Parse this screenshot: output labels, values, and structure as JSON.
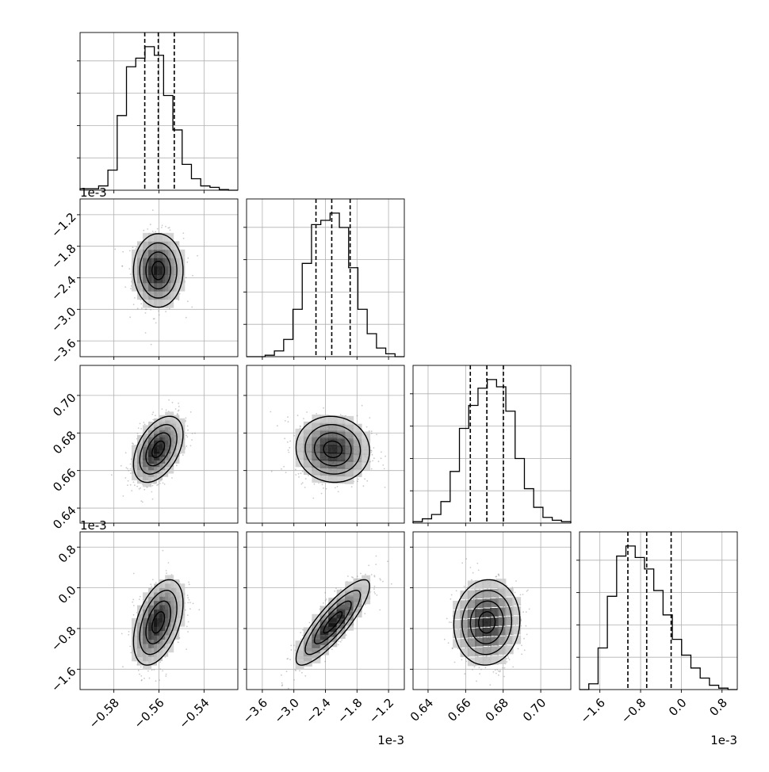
{
  "chart_data": {
    "type": "corner",
    "parameters": [
      {
        "index": 0,
        "range": [
          -0.595,
          -0.525
        ],
        "ticks": [
          -0.58,
          -0.56,
          -0.54
        ],
        "tick_labels": [
          "-0.58",
          "-0.56",
          "-0.54"
        ],
        "offset_label": "",
        "quantiles": [
          -0.5663,
          -0.5603,
          -0.5532
        ],
        "hist_bins": [
          0.01,
          0.01,
          0.03,
          0.14,
          0.52,
          0.86,
          0.92,
          1.0,
          0.94,
          0.66,
          0.42,
          0.18,
          0.08,
          0.03,
          0.02,
          0.005,
          0.0
        ],
        "mean": -0.5603,
        "std": 0.0055
      },
      {
        "index": 1,
        "range": [
          -3.9,
          -0.9
        ],
        "ticks": [
          -3.6,
          -3.0,
          -2.4,
          -1.8,
          -1.2
        ],
        "tick_labels": [
          "-3.6",
          "-3.0",
          "-2.4",
          "-1.8",
          "-1.2"
        ],
        "offset_label": "1e-3",
        "quantiles": [
          -2.58,
          -2.28,
          -1.93
        ],
        "hist_bins": [
          0.0,
          0.0,
          0.01,
          0.04,
          0.12,
          0.33,
          0.65,
          0.92,
          0.95,
          1.0,
          0.9,
          0.62,
          0.33,
          0.16,
          0.06,
          0.02,
          0.0
        ],
        "mean": -2.26,
        "std": 0.35
      },
      {
        "index": 2,
        "range": [
          0.632,
          0.716
        ],
        "ticks": [
          0.64,
          0.66,
          0.68,
          0.7
        ],
        "tick_labels": [
          "0.64",
          "0.66",
          "0.68",
          "0.70"
        ],
        "offset_label": "1e-3",
        "quantiles": [
          0.6625,
          0.6713,
          0.6801
        ],
        "hist_bins": [
          0.01,
          0.03,
          0.06,
          0.15,
          0.36,
          0.66,
          0.82,
          0.94,
          1.0,
          0.95,
          0.78,
          0.45,
          0.24,
          0.11,
          0.04,
          0.02,
          0.01
        ],
        "mean": 0.6713,
        "std": 0.0088
      },
      {
        "index": 3,
        "range": [
          -2.0,
          1.1
        ],
        "ticks": [
          -1.6,
          -0.8,
          0.0,
          0.8
        ],
        "tick_labels": [
          "-1.6",
          "-0.8",
          "0.0",
          "0.8"
        ],
        "offset_label": "1e-3",
        "quantiles": [
          -1.05,
          -0.68,
          -0.2
        ],
        "hist_bins": [
          0.0,
          0.04,
          0.29,
          0.65,
          0.93,
          1.0,
          0.92,
          0.84,
          0.69,
          0.52,
          0.35,
          0.24,
          0.15,
          0.08,
          0.03,
          0.01,
          0.0
        ],
        "mean": -0.68,
        "std": 0.42
      }
    ],
    "correlations": [
      [
        1.0,
        0.0,
        0.45,
        0.45
      ],
      [
        0.0,
        1.0,
        -0.05,
        0.85
      ],
      [
        0.45,
        -0.05,
        1.0,
        0.05
      ],
      [
        0.45,
        0.85,
        0.05,
        1.0
      ]
    ],
    "density_levels_sigma": [
      0.5,
      1.0,
      1.5,
      2.0
    ],
    "colors": {
      "hist": "#000000",
      "contour": "#000000",
      "scatter": "#8a8a8a",
      "grid": "#b0b0b0"
    },
    "grid": true
  }
}
